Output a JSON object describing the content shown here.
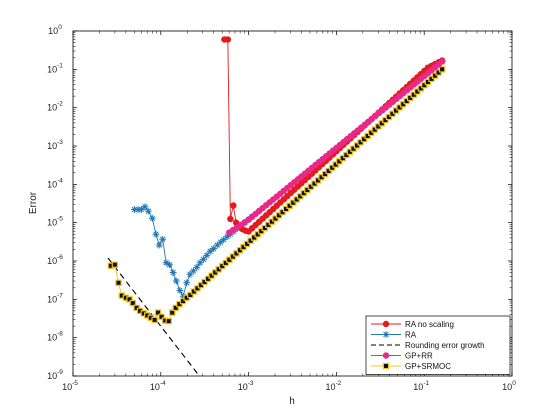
{
  "chart_data": {
    "type": "line",
    "xscale": "log",
    "yscale": "log",
    "xlabel": "h",
    "ylabel": "Error",
    "xlim": [
      1e-05,
      1
    ],
    "ylim": [
      1e-09,
      1
    ],
    "x_ticks": [
      {
        "base": "10",
        "exp": "-5",
        "value": 1e-05
      },
      {
        "base": "10",
        "exp": "-4",
        "value": 0.0001
      },
      {
        "base": "10",
        "exp": "-3",
        "value": 0.001
      },
      {
        "base": "10",
        "exp": "-2",
        "value": 0.01
      },
      {
        "base": "10",
        "exp": "-1",
        "value": 0.1
      },
      {
        "base": "10",
        "exp": "0",
        "value": 1
      }
    ],
    "y_ticks": [
      {
        "base": "10",
        "exp": "-9",
        "value": 1e-09
      },
      {
        "base": "10",
        "exp": "-8",
        "value": 1e-08
      },
      {
        "base": "10",
        "exp": "-7",
        "value": 1e-07
      },
      {
        "base": "10",
        "exp": "-6",
        "value": 1e-06
      },
      {
        "base": "10",
        "exp": "-5",
        "value": 1e-05
      },
      {
        "base": "10",
        "exp": "-4",
        "value": 0.0001
      },
      {
        "base": "10",
        "exp": "-3",
        "value": 0.001
      },
      {
        "base": "10",
        "exp": "-2",
        "value": 0.01
      },
      {
        "base": "10",
        "exp": "-1",
        "value": 0.1
      },
      {
        "base": "10",
        "exp": "0",
        "value": 1
      }
    ],
    "grid": false,
    "legend_position": "bottom-right",
    "series": [
      {
        "name": "RA no scaling",
        "color": "#e41a1c",
        "line": "solid",
        "marker": "circle",
        "points": [
          [
            0.00053,
            0.6
          ],
          [
            0.00058,
            0.6
          ],
          [
            0.00062,
            1.25e-05
          ],
          [
            0.00067,
            2.8e-05
          ],
          [
            0.00072,
            1e-05
          ],
          [
            0.00078,
            8e-06
          ],
          [
            0.00085,
            6.8e-06
          ],
          [
            0.00092,
            6.2e-06
          ],
          [
            0.001,
            5.9e-06
          ],
          [
            0.11,
            0.11
          ],
          [
            0.16,
            0.17
          ]
        ],
        "trend": "parallel to GP+SRMOC, about 1.6x higher, from h=1e-3 to h=0.16"
      },
      {
        "name": "RA",
        "color": "#1f77b4",
        "line": "solid",
        "marker": "star",
        "points": [
          [
            5e-05,
            2.2e-05
          ],
          [
            5.5e-05,
            2.2e-05
          ],
          [
            6e-05,
            2.2e-05
          ],
          [
            6.6e-05,
            2.6e-05
          ],
          [
            7.2e-05,
            2e-05
          ],
          [
            8e-05,
            1.3e-05
          ],
          [
            8.8e-05,
            5e-06
          ],
          [
            9.6e-05,
            2.6e-06
          ],
          [
            0.000105,
            3.7e-06
          ],
          [
            0.000115,
            9e-07
          ],
          [
            0.000126,
            8e-07
          ],
          [
            0.000138,
            5e-07
          ],
          [
            0.00015,
            3e-07
          ],
          [
            0.000165,
            1.7e-07
          ],
          [
            0.00018,
            1.2e-07
          ],
          [
            0.000197,
            2.7e-07
          ],
          [
            0.000215,
            4.5e-07
          ],
          [
            0.000235,
            5.5e-07
          ],
          [
            0.000257,
            6.8e-07
          ],
          [
            0.00028,
            9e-07
          ],
          [
            0.000306,
            1.1e-06
          ],
          [
            0.000334,
            1.4e-06
          ],
          [
            0.000365,
            1.8e-06
          ],
          [
            0.0004,
            2.1e-06
          ],
          [
            0.00044,
            2.6e-06
          ],
          [
            0.00048,
            3.1e-06
          ],
          [
            0.00052,
            3.6e-06
          ],
          [
            0.00057,
            4.3e-06
          ],
          [
            0.00062,
            5e-06
          ]
        ],
        "trend": "follows GP+RR above h=6e-4"
      },
      {
        "name": "Rounding error growth",
        "color": "#000000",
        "line": "dashed",
        "marker": "none",
        "points": [
          [
            2.5e-05,
            1.2e-06
          ],
          [
            0.000275,
            1e-09
          ]
        ]
      },
      {
        "name": "GP+RR",
        "color": "#e7298a",
        "line": "solid",
        "marker": "circle",
        "points": [
          [
            0.0006,
            5.5e-06
          ],
          [
            0.001,
            1.2e-05
          ],
          [
            0.16,
            0.16
          ]
        ],
        "trend": "straight line of slope about 1.6 in log-log, about 1.5x above GP+SRMOC"
      },
      {
        "name": "GP+SRMOC",
        "color": "#f0c419",
        "line": "solid",
        "marker": "square",
        "points": [
          [
            2.7e-05,
            7.5e-07
          ],
          [
            3e-05,
            8e-07
          ],
          [
            3.3e-05,
            2.7e-07
          ],
          [
            3.6e-05,
            1.25e-07
          ],
          [
            4e-05,
            1.1e-07
          ],
          [
            4.4e-05,
            1e-07
          ],
          [
            4.8e-05,
            8e-08
          ],
          [
            5.3e-05,
            6e-08
          ],
          [
            5.8e-05,
            5e-08
          ],
          [
            6.4e-05,
            4.3e-08
          ],
          [
            7e-05,
            3.8e-08
          ],
          [
            7.7e-05,
            3.3e-08
          ],
          [
            8.5e-05,
            2.9e-08
          ],
          [
            9.3e-05,
            4.5e-08
          ],
          [
            0.000102,
            3.5e-08
          ],
          [
            0.000112,
            2.8e-08
          ],
          [
            0.000123,
            2.7e-08
          ],
          [
            0.000135,
            4.5e-08
          ],
          [
            0.000148,
            6e-08
          ],
          [
            0.000163,
            7.5e-08
          ],
          [
            0.000179,
            9e-08
          ],
          [
            0.000197,
            1.1e-07
          ],
          [
            0.000217,
            1.3e-07
          ],
          [
            0.000238,
            1.6e-07
          ],
          [
            0.16,
            0.1
          ]
        ],
        "trend": "straight line of slope about 1.6 in log-log from h=2.4e-4 to h=0.16"
      }
    ]
  }
}
